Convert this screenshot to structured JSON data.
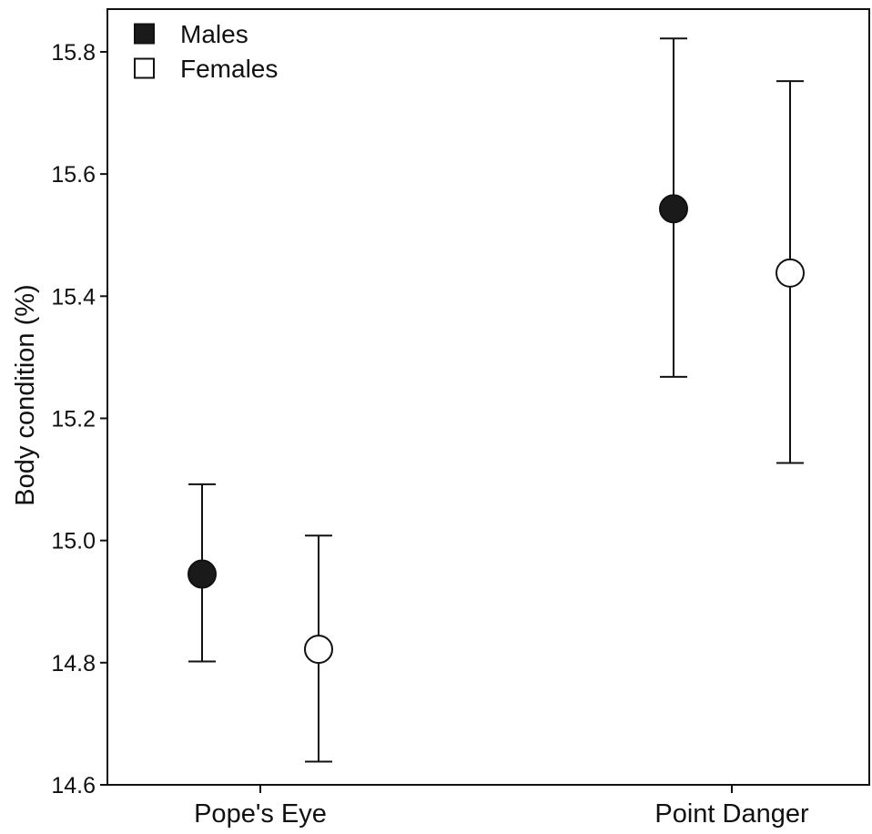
{
  "chart_data": {
    "type": "scatter",
    "subtype": "point-with-error-bars",
    "title": "",
    "xlabel": "",
    "ylabel": "Body condition (%)",
    "categories": [
      "Pope's Eye",
      "Point Danger"
    ],
    "ylim": [
      14.6,
      15.87
    ],
    "yticks": [
      14.6,
      14.8,
      15.0,
      15.2,
      15.4,
      15.6,
      15.8
    ],
    "ytick_labels": [
      "14.6",
      "14.8",
      "15.0",
      "15.2",
      "15.4",
      "15.6",
      "15.8"
    ],
    "grid": false,
    "legend_position": "top-left",
    "series": [
      {
        "name": "Males",
        "marker": "filled-circle",
        "color": "#1a1a1a",
        "values": [
          14.945,
          15.543
        ],
        "lower": [
          14.802,
          15.268
        ],
        "upper": [
          15.092,
          15.822
        ]
      },
      {
        "name": "Females",
        "marker": "open-circle",
        "color": "#ffffff",
        "values": [
          14.822,
          15.438
        ],
        "lower": [
          14.638,
          15.127
        ],
        "upper": [
          15.008,
          15.752
        ]
      }
    ]
  }
}
